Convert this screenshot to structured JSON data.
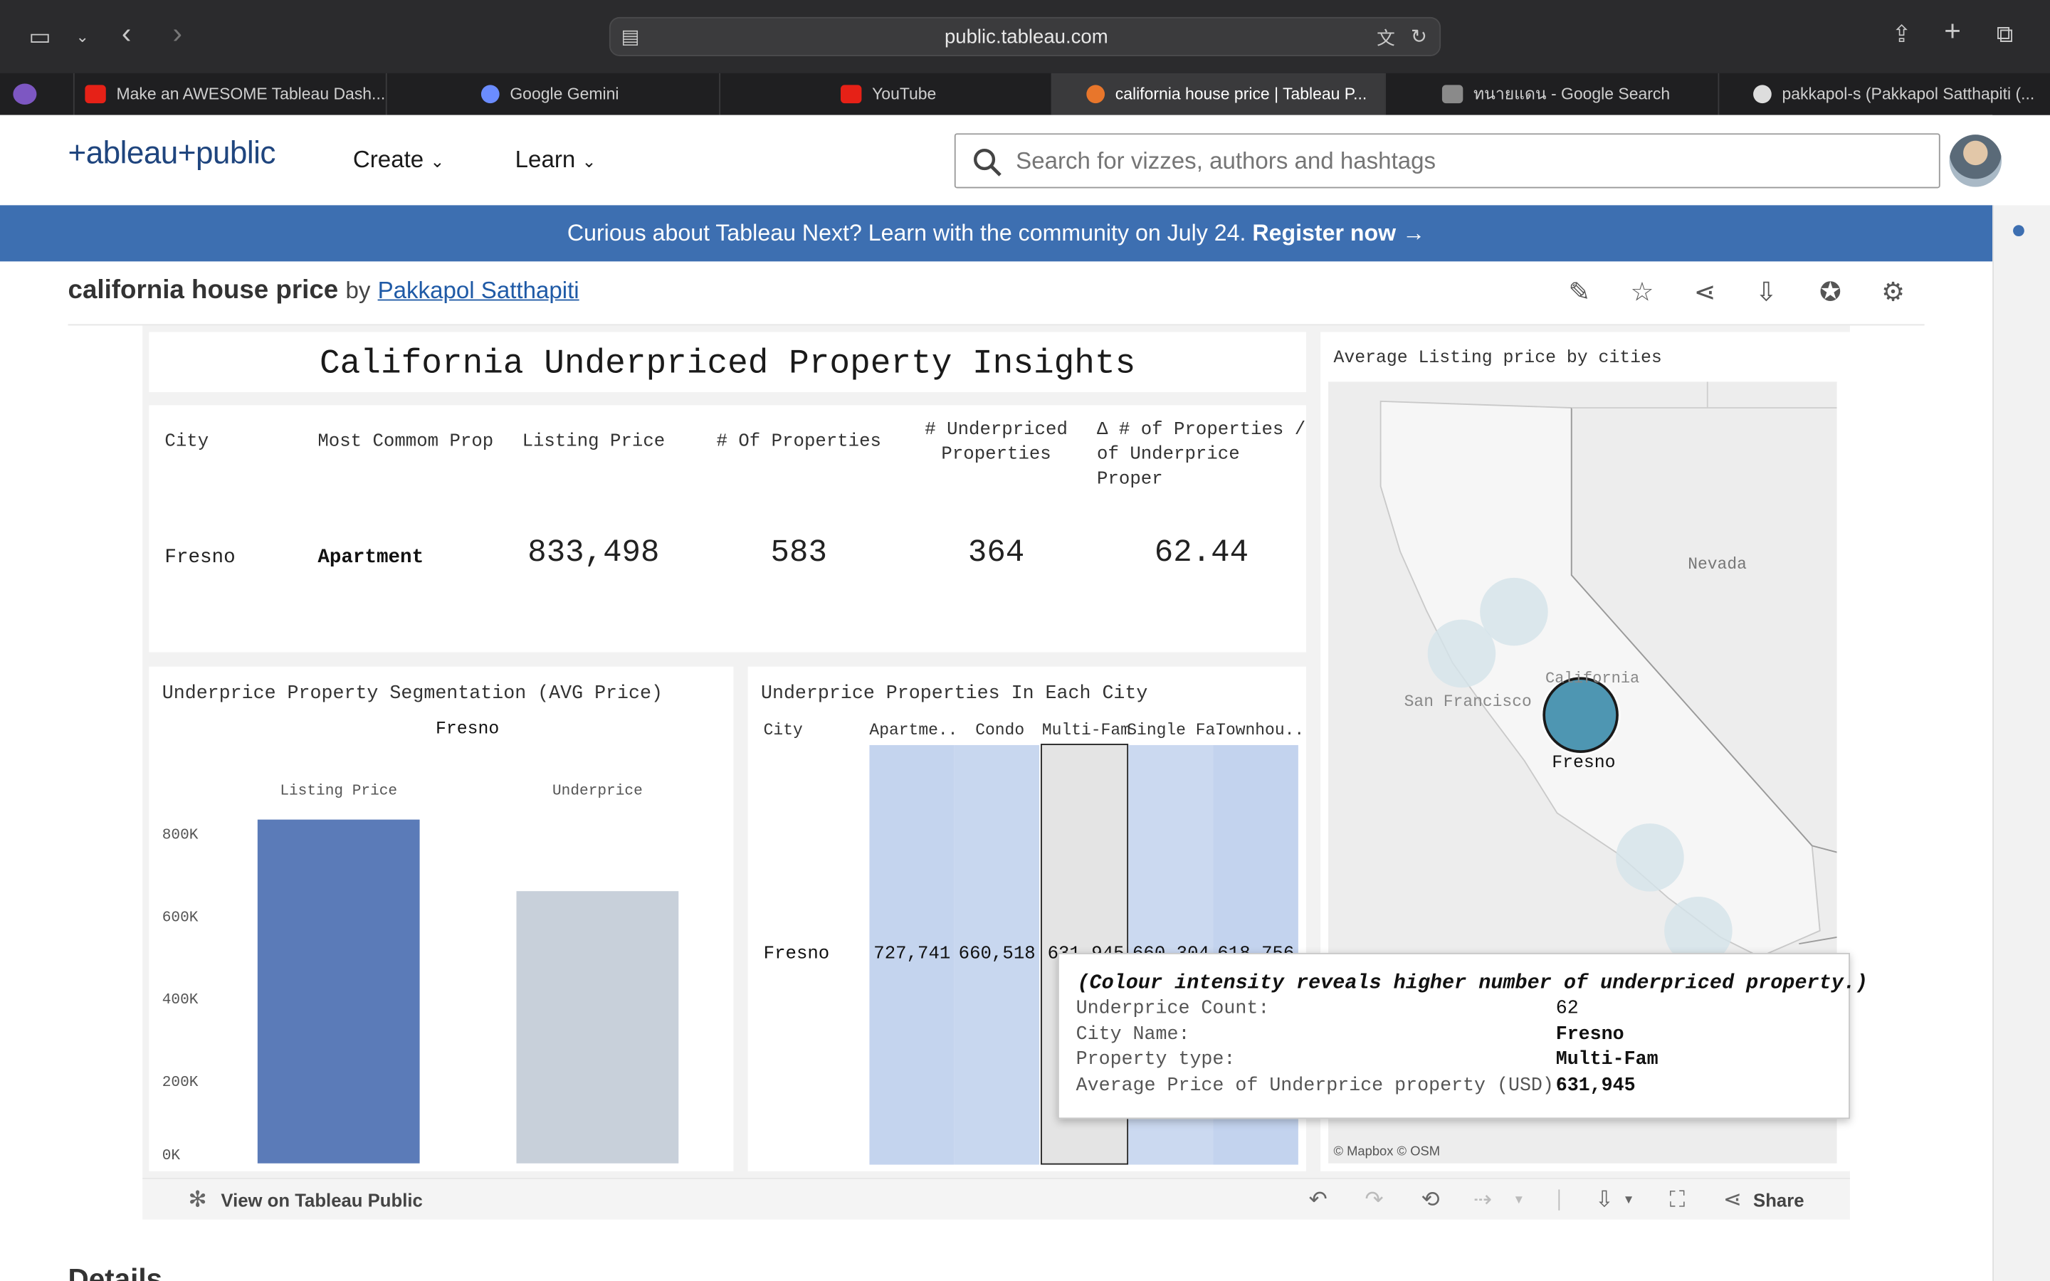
{
  "browser": {
    "url": "public.tableau.com",
    "tabs": [
      {
        "label": "Make an AWESOME Tableau Dash...",
        "color": "#e62117"
      },
      {
        "label": "Google Gemini",
        "color": "#6b8cff"
      },
      {
        "label": "YouTube",
        "color": "#e62117"
      },
      {
        "label": "california house price | Tableau P...",
        "color": "#e8762b"
      },
      {
        "label": "ทนายแดน - Google Search",
        "color": "#8a8a8a"
      },
      {
        "label": "pakkapol-s (Pakkapol Satthapiti (...",
        "color": "#dddddd"
      }
    ]
  },
  "header": {
    "logo": "+ableau+public",
    "nav_create": "Create",
    "nav_learn": "Learn",
    "search_placeholder": "Search for vizzes, authors and hashtags"
  },
  "banner": {
    "text": "Curious about Tableau Next? Learn with the community on July 24.",
    "link": "Register now →"
  },
  "viz": {
    "title": "california house price",
    "by": "by",
    "author": "Pakkapol Satthapiti"
  },
  "dashboard": {
    "title": "California Underpriced Property Insights",
    "kpi": {
      "headers": [
        "City",
        "Most Commom Prop",
        "Listing Price",
        "# Of Properties",
        "# Underpriced\nProperties",
        "Δ # of Properties /\nof Underprice Proper"
      ],
      "values": [
        "Fresno",
        "Apartment",
        "833,498",
        "583",
        "364",
        "62.44"
      ]
    },
    "segmentation": {
      "title": "Underprice Property Segmentation (AVG Price)",
      "city": "Fresno",
      "col1": "Listing Price",
      "col2": "Underprice"
    },
    "city_table": {
      "title": "Underprice Properties In Each City",
      "headers": [
        "City",
        "Apartme..",
        "Condo",
        "Multi-Fam",
        "Single Fa.",
        "Townhou.."
      ],
      "row_city": "Fresno",
      "values": [
        "727,741",
        "660,518",
        "631,945",
        "660,304",
        "618,756"
      ]
    },
    "map": {
      "title": "Average Listing price by cities",
      "labels": {
        "nevada": "Nevada",
        "sf": "San Francisco",
        "california": "California",
        "fresno": "Fresno"
      },
      "attribution": "© Mapbox  © OSM"
    },
    "tooltip": {
      "heading": "(Colour intensity reveals higher number of underpriced property.)",
      "rows": [
        {
          "k": "Underprice Count:",
          "v": "62"
        },
        {
          "k": "City Name:",
          "v": "Fresno"
        },
        {
          "k": "Property type:",
          "v": "Multi-Fam"
        },
        {
          "k": "Average Price of Underprice property (USD):",
          "v": "631,945"
        }
      ]
    }
  },
  "toolbar": {
    "view_label": "View on Tableau Public",
    "share_label": "Share"
  },
  "details": "Details",
  "colors": {
    "accent": "#3d6fb1",
    "bar1": "#5b7bb8",
    "bar2": "#c8d0da",
    "cell": "#c6d6ef",
    "bubble": "#4e96b2"
  },
  "chart_data": {
    "type": "bar",
    "title": "Underprice Property Segmentation (AVG Price)",
    "categories": [
      "Listing Price",
      "Underprice"
    ],
    "values": [
      833498,
      660000
    ],
    "ylim": [
      0,
      833498
    ],
    "yticks": [
      "0K",
      "200K",
      "400K",
      "600K",
      "800K"
    ],
    "ytick_values": [
      0,
      200000,
      400000,
      600000,
      800000
    ]
  }
}
